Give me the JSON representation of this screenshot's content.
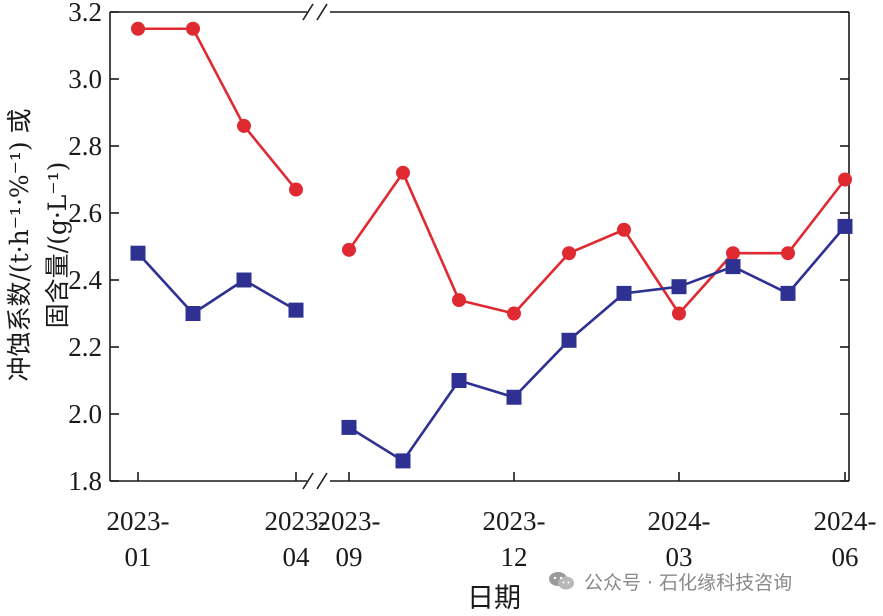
{
  "chart_data": {
    "type": "line",
    "xlabel": "日期",
    "ylabel_lines": [
      "冲蚀系数/(t·h⁻¹·%⁻¹) 或",
      "固含量/(g·L⁻¹)"
    ],
    "ylim": [
      1.8,
      3.2
    ],
    "yticks": [
      "1.8",
      "2.0",
      "2.2",
      "2.4",
      "2.6",
      "2.8",
      "3.0",
      "3.2"
    ],
    "axis_break": "between 2023-04 and 2023-09",
    "x_labels": [
      {
        "line1": "2023-",
        "line2": "01",
        "index": 0
      },
      {
        "line1": "2023-",
        "line2": "04",
        "index": 3
      },
      {
        "line1": "2023-",
        "line2": "09",
        "index": 4
      },
      {
        "line1": "2023-",
        "line2": "12",
        "index": 7
      },
      {
        "line1": "2024-",
        "line2": "03",
        "index": 10
      },
      {
        "line1": "2024-",
        "line2": "06",
        "index": 13
      }
    ],
    "x": [
      "2023-01",
      "2023-02",
      "2023-03",
      "2023-04",
      "2023-09",
      "2023-10",
      "2023-11",
      "2023-12",
      "2024-01",
      "2024-02",
      "2024-03",
      "2024-04",
      "2024-05",
      "2024-06"
    ],
    "series": [
      {
        "color": "#e02a32",
        "marker": "circle",
        "values": [
          3.15,
          3.15,
          2.86,
          2.67,
          2.49,
          2.72,
          2.34,
          2.3,
          2.48,
          2.55,
          2.3,
          2.48,
          2.48,
          2.7
        ]
      },
      {
        "color": "#2e3192",
        "marker": "square",
        "values": [
          2.48,
          2.3,
          2.4,
          2.31,
          1.96,
          1.86,
          2.1,
          2.05,
          2.22,
          2.36,
          2.38,
          2.44,
          2.36,
          2.56
        ]
      }
    ]
  },
  "watermark": {
    "text": "公众号 · 石化缘科技咨询",
    "logo_icon": "wechat-logo-icon"
  }
}
